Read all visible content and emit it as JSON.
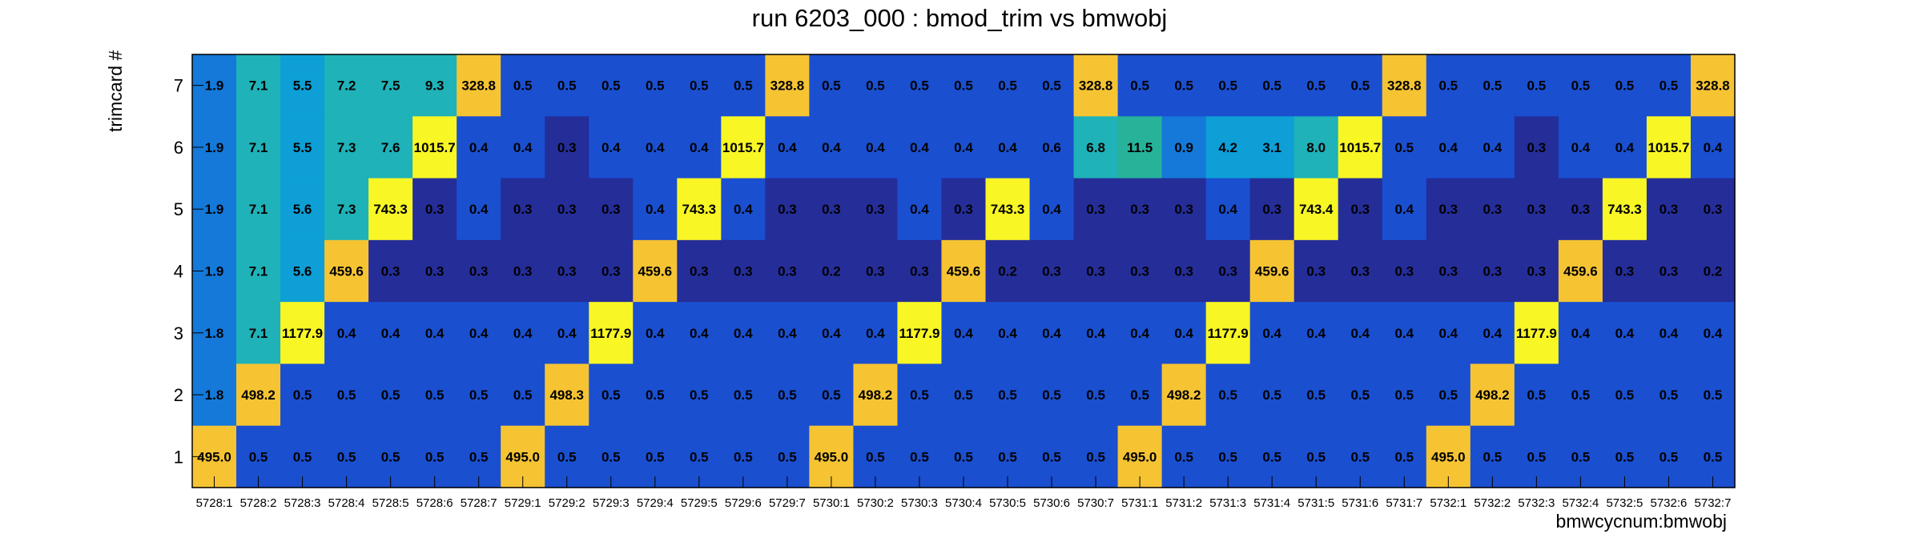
{
  "chart_data": {
    "type": "heatmap",
    "title": "run 6203_000 : bmod_trim vs bmwobj",
    "xlabel": "bmwcycnum:bmwobj",
    "ylabel": "trimcard #",
    "x_categories": [
      "5728:1",
      "5728:2",
      "5728:3",
      "5728:4",
      "5728:5",
      "5728:6",
      "5728:7",
      "5729:1",
      "5729:2",
      "5729:3",
      "5729:4",
      "5729:5",
      "5729:6",
      "5729:7",
      "5730:1",
      "5730:2",
      "5730:3",
      "5730:4",
      "5730:5",
      "5730:6",
      "5730:7",
      "5731:1",
      "5731:2",
      "5731:3",
      "5731:4",
      "5731:5",
      "5731:6",
      "5731:7",
      "5732:1",
      "5732:2",
      "5732:3",
      "5732:4",
      "5732:5",
      "5732:6",
      "5732:7"
    ],
    "y_categories": [
      "1",
      "2",
      "3",
      "4",
      "5",
      "6",
      "7"
    ],
    "rows": [
      {
        "y": "7",
        "values": [
          "1.9",
          "7.1",
          "5.5",
          "7.2",
          "7.5",
          "9.3",
          "328.8",
          "0.5",
          "0.5",
          "0.5",
          "0.5",
          "0.5",
          "0.5",
          "328.8",
          "0.5",
          "0.5",
          "0.5",
          "0.5",
          "0.5",
          "0.5",
          "328.8",
          "0.5",
          "0.5",
          "0.5",
          "0.5",
          "0.5",
          "0.5",
          "328.8",
          "0.5",
          "0.5",
          "0.5",
          "0.5",
          "0.5",
          "0.5",
          "328.8"
        ]
      },
      {
        "y": "6",
        "values": [
          "1.9",
          "7.1",
          "5.5",
          "7.3",
          "7.6",
          "1015.7",
          "0.4",
          "0.4",
          "0.3",
          "0.4",
          "0.4",
          "0.4",
          "1015.7",
          "0.4",
          "0.4",
          "0.4",
          "0.4",
          "0.4",
          "0.4",
          "0.6",
          "6.8",
          "11.5",
          "0.9",
          "4.2",
          "3.1",
          "8.0",
          "1015.7",
          "0.5",
          "0.4",
          "0.4",
          "0.3",
          "0.4",
          "0.4",
          "1015.7",
          "0.4"
        ]
      },
      {
        "y": "5",
        "values": [
          "1.9",
          "7.1",
          "5.6",
          "7.3",
          "743.3",
          "0.3",
          "0.4",
          "0.3",
          "0.3",
          "0.3",
          "0.4",
          "743.3",
          "0.4",
          "0.3",
          "0.3",
          "0.3",
          "0.4",
          "0.3",
          "743.3",
          "0.4",
          "0.3",
          "0.3",
          "0.3",
          "0.4",
          "0.3",
          "743.4",
          "0.3",
          "0.4",
          "0.3",
          "0.3",
          "0.3",
          "0.3",
          "743.3",
          "0.3",
          "0.3"
        ]
      },
      {
        "y": "4",
        "values": [
          "1.9",
          "7.1",
          "5.6",
          "459.6",
          "0.3",
          "0.3",
          "0.3",
          "0.3",
          "0.3",
          "0.3",
          "459.6",
          "0.3",
          "0.3",
          "0.3",
          "0.2",
          "0.3",
          "0.3",
          "459.6",
          "0.2",
          "0.3",
          "0.3",
          "0.3",
          "0.3",
          "0.3",
          "459.6",
          "0.3",
          "0.3",
          "0.3",
          "0.3",
          "0.3",
          "0.3",
          "459.6",
          "0.3",
          "0.3",
          "0.2"
        ]
      },
      {
        "y": "3",
        "values": [
          "1.8",
          "7.1",
          "1177.9",
          "0.4",
          "0.4",
          "0.4",
          "0.4",
          "0.4",
          "0.4",
          "1177.9",
          "0.4",
          "0.4",
          "0.4",
          "0.4",
          "0.4",
          "0.4",
          "1177.9",
          "0.4",
          "0.4",
          "0.4",
          "0.4",
          "0.4",
          "0.4",
          "1177.9",
          "0.4",
          "0.4",
          "0.4",
          "0.4",
          "0.4",
          "0.4",
          "1177.9",
          "0.4",
          "0.4",
          "0.4",
          "0.4"
        ]
      },
      {
        "y": "2",
        "values": [
          "1.8",
          "498.2",
          "0.5",
          "0.5",
          "0.5",
          "0.5",
          "0.5",
          "0.5",
          "498.3",
          "0.5",
          "0.5",
          "0.5",
          "0.5",
          "0.5",
          "0.5",
          "498.2",
          "0.5",
          "0.5",
          "0.5",
          "0.5",
          "0.5",
          "0.5",
          "498.2",
          "0.5",
          "0.5",
          "0.5",
          "0.5",
          "0.5",
          "0.5",
          "498.2",
          "0.5",
          "0.5",
          "0.5",
          "0.5",
          "0.5"
        ]
      },
      {
        "y": "1",
        "values": [
          "495.0",
          "0.5",
          "0.5",
          "0.5",
          "0.5",
          "0.5",
          "0.5",
          "495.0",
          "0.5",
          "0.5",
          "0.5",
          "0.5",
          "0.5",
          "0.5",
          "495.0",
          "0.5",
          "0.5",
          "0.5",
          "0.5",
          "0.5",
          "0.5",
          "495.0",
          "0.5",
          "0.5",
          "0.5",
          "0.5",
          "0.5",
          "0.5",
          "495.0",
          "0.5",
          "0.5",
          "0.5",
          "0.5",
          "0.5",
          "0.5"
        ]
      }
    ],
    "colors": {
      "lowest": "#252d99",
      "low": "#1a4fd0",
      "mid_low": "#1479d9",
      "mid": "#0d9fd6",
      "mid_teal": "#1fb2b8",
      "teal_green": "#26b39a",
      "high_orange": "#f6c433",
      "highest_yellow": "#f8f625"
    },
    "color_scale": "palette shading by cell value",
    "grid": false,
    "legend": "none"
  }
}
